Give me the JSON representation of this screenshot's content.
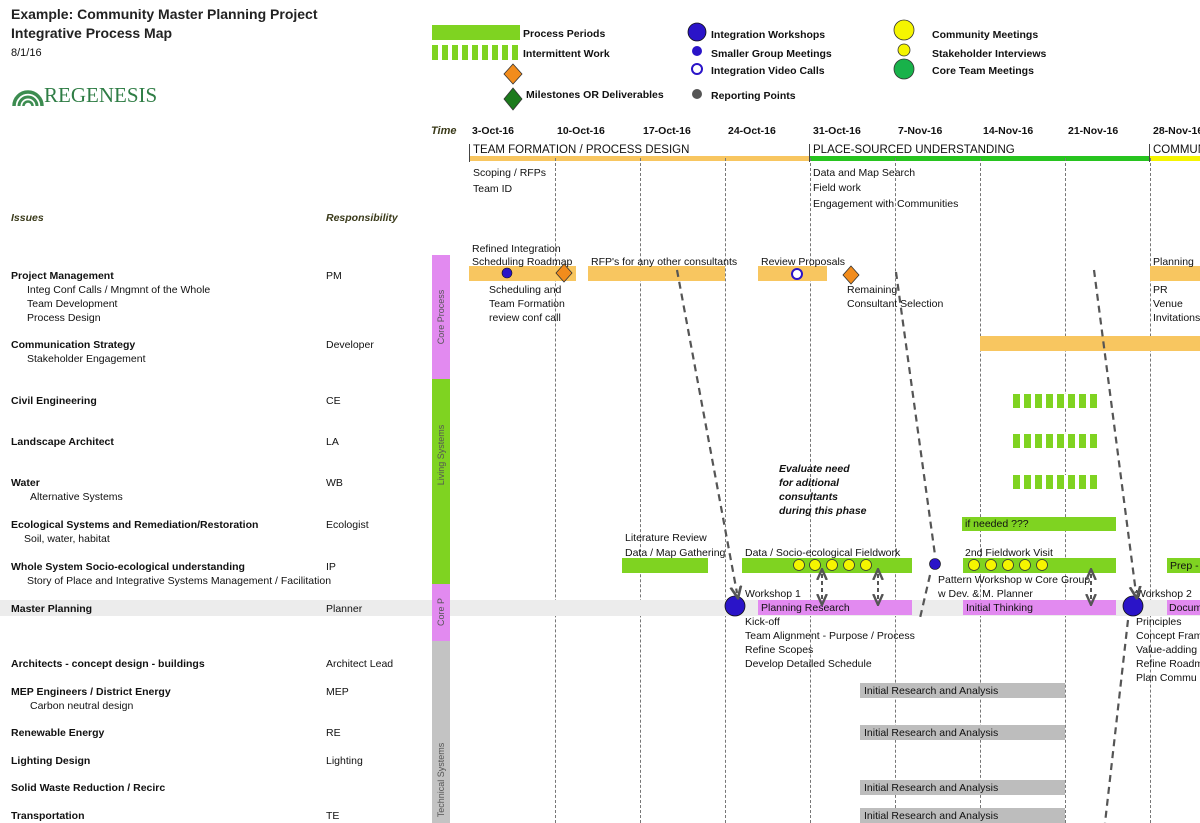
{
  "header": {
    "title_line1": "Example:  Community Master Planning Project",
    "title_line2": "Integrative Process Map",
    "date": "8/1/16",
    "logo_text": "REGENESIS"
  },
  "legend": {
    "process_periods": "Process Periods",
    "intermittent_work": "Intermittent Work",
    "milestones": "Milestones OR Deliverables",
    "integration_workshops": "Integration Workshops",
    "smaller_group": "Smaller Group Meetings",
    "video_calls": "Integration Video Calls",
    "reporting_points": "Reporting Points",
    "community_meetings": "Community Meetings",
    "stakeholder_interviews": "Stakeholder Interviews",
    "core_team": "Core Team Meetings"
  },
  "timeline": {
    "time_label": "Time",
    "dates": [
      "3-Oct-16",
      "10-Oct-16",
      "17-Oct-16",
      "24-Oct-16",
      "31-Oct-16",
      "7-Nov-16",
      "14-Nov-16",
      "21-Nov-16",
      "28-Nov-16"
    ],
    "phases": [
      "TEAM FORMATION / PROCESS DESIGN",
      "PLACE-SOURCED UNDERSTANDING",
      "COMMUNI"
    ]
  },
  "columns": {
    "issues": "Issues",
    "responsibility": "Responsibility"
  },
  "rows": [
    {
      "issue": "Project Management",
      "resp": "PM",
      "subs": [
        "Integ Conf Calls / Mngmnt of the Whole",
        "Team Development",
        "Process Design"
      ]
    },
    {
      "issue": "Communication Strategy",
      "resp": "Developer",
      "subs": [
        "Stakeholder Engagement"
      ]
    },
    {
      "issue": "Civil Engineering",
      "resp": "CE",
      "subs": []
    },
    {
      "issue": "Landscape Architect",
      "resp": "LA",
      "subs": []
    },
    {
      "issue": "Water",
      "resp": "WB",
      "subs": [
        "Alternative Systems"
      ]
    },
    {
      "issue": "Ecological Systems and Remediation/Restoration",
      "resp": "Ecologist",
      "subs": [
        "Soil, water, habitat"
      ]
    },
    {
      "issue": "Whole System Socio-ecological understanding",
      "resp": "IP",
      "subs": [
        "Story of Place and Integrative Systems Management / Facilitation"
      ]
    },
    {
      "issue": "Master Planning",
      "resp": "Planner",
      "subs": []
    },
    {
      "issue": "Architects - concept design - buildings",
      "resp": "Architect Lead",
      "subs": []
    },
    {
      "issue": "MEP Engineers / District Energy",
      "resp": "MEP",
      "subs": [
        "Carbon neutral design"
      ]
    },
    {
      "issue": "Renewable Energy",
      "resp": "RE",
      "subs": []
    },
    {
      "issue": "Lighting Design",
      "resp": "Lighting",
      "subs": []
    },
    {
      "issue": "Solid Waste Reduction / Recirc",
      "resp": "",
      "subs": []
    },
    {
      "issue": "Transportation",
      "resp": "TE",
      "subs": []
    }
  ],
  "groups": {
    "core_process": "Core Process",
    "living_systems": "Living Systems",
    "core_p": "Core P",
    "technical_systems": "Technical Systems"
  },
  "notes": {
    "scoping": "Scoping / RFPs",
    "team_id": "Team ID",
    "data_map": "Data and Map Search",
    "field_work": "Field work",
    "engagement": "Engagement with Communities",
    "refined_1": "Refined Integration",
    "refined_2": "Scheduling Roadmap",
    "rfps": "RFP's for any other consultants",
    "review_proposals": "Review Proposals",
    "planning": "Planning",
    "sched_1": "Scheduling and",
    "sched_2": "Team Formation",
    "sched_3": "review conf call",
    "remaining_1": "Remaining",
    "remaining_2": "Consultant Selection",
    "pr": "PR",
    "venue": "Venue",
    "invitations": "Invitations",
    "eval_1": "Evaluate need",
    "eval_2": "for aditional",
    "eval_3": "consultants",
    "eval_4": "during this phase",
    "if_needed": "if needed ???",
    "lit_review": "Literature Review",
    "data_map_gathering": "Data / Map Gathering",
    "fieldwork": "Data / Socio-ecological Fieldwork",
    "second_fieldwork": "2nd Fieldwork Visit",
    "prep": "Prep -",
    "workshop1": "Workshop 1",
    "pattern_1": "Pattern Workshop w Core Group",
    "pattern_2": "w Dev. & M. Planner",
    "workshop2": "Workshop 2",
    "planning_research": "Planning Research",
    "initial_thinking": "Initial Thinking",
    "docum": "Docum",
    "kickoff": "Kick-off",
    "team_alignment": "Team Alignment - Purpose / Process",
    "refine_scopes": "Refine Scopes",
    "develop_schedule": "Develop Detailed Schedule",
    "principles": "Principles",
    "concept_fram": "Concept Fram",
    "value_adding": "Value-adding",
    "refine_road": "Refine Roadm",
    "plan_commu": "Plan Commu",
    "initial_research": "Initial Research and Analysis"
  },
  "colors": {
    "orange": "#f8c660",
    "green": "#7fd321",
    "violet": "#e28af0",
    "grey": "#bdbdbd",
    "milestone_orange": "#f28c1c",
    "milestone_green": "#1c7a1c",
    "workshop": "#2a14c8",
    "yellow": "#f5f500",
    "core_team": "#18b24a"
  }
}
